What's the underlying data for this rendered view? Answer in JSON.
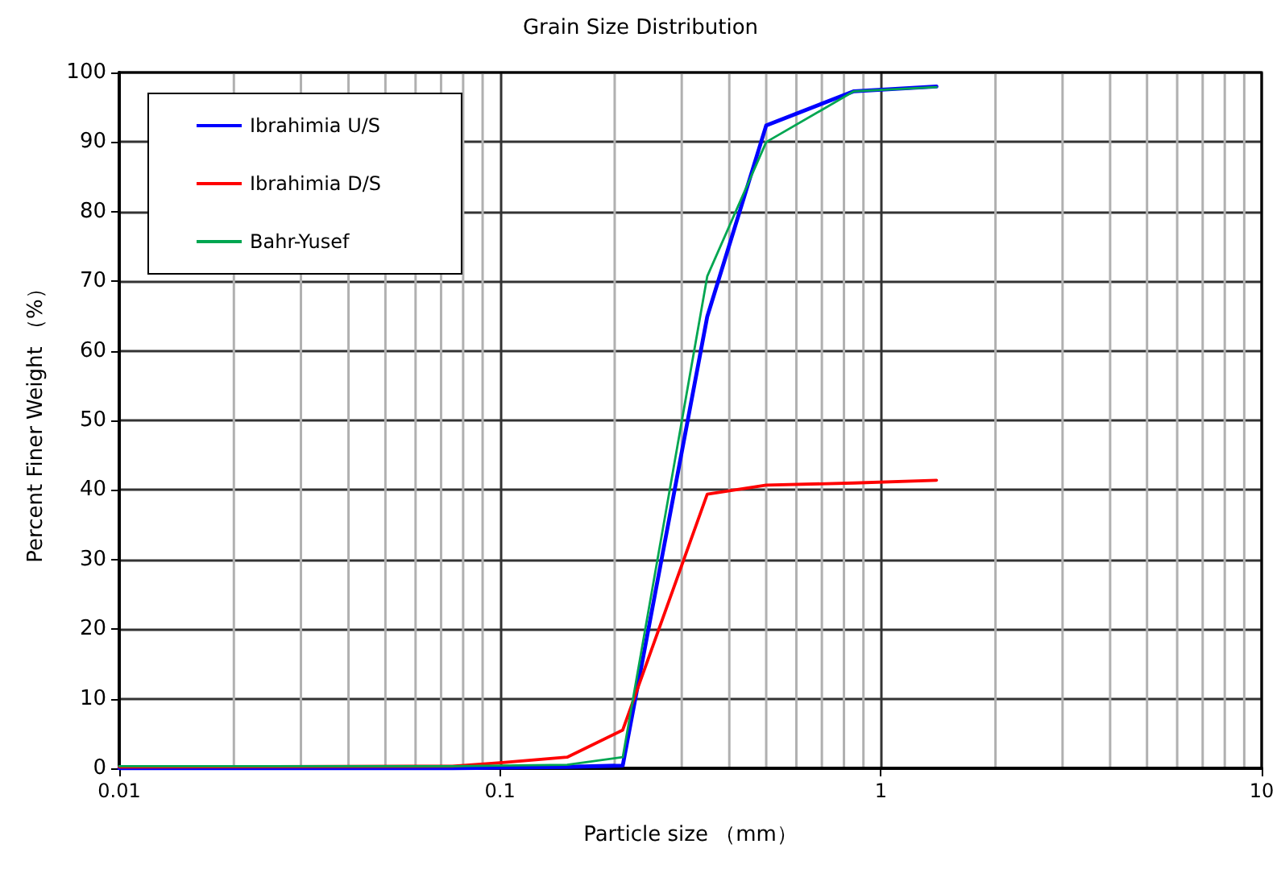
{
  "chart_data": {
    "type": "line",
    "title": "Grain Size Distribution",
    "xlabel": "Particle size （mm）",
    "ylabel": "Percent Finer Weight （%）",
    "log": "x",
    "xlim": [
      0.01,
      10
    ],
    "xticks": [
      0.01,
      0.1,
      1,
      10
    ],
    "ylim": [
      0,
      100
    ],
    "yticks": [
      0,
      10,
      20,
      30,
      40,
      50,
      60,
      70,
      80,
      90,
      100
    ],
    "grid": true,
    "legend": "top left",
    "marker": "none",
    "line_style": "solid",
    "series": [
      {
        "name": "Ibrahimia U/S",
        "color": "#0000ff",
        "x": [
          0.01,
          0.075,
          0.1,
          0.15,
          0.21,
          0.35,
          0.5,
          0.85,
          1.4
        ],
        "values": [
          0,
          0,
          0.1,
          0.2,
          0.4,
          64.9,
          92.4,
          97.3,
          98
        ]
      },
      {
        "name": "Ibrahimia D/S",
        "color": "#ff0000",
        "x": [
          0.01,
          0.075,
          0.1,
          0.15,
          0.21,
          0.35,
          0.5,
          0.85,
          1.4
        ],
        "values": [
          0.2,
          0.3,
          0.8,
          1.6,
          5.5,
          39.4,
          40.7,
          41,
          41.4
        ]
      },
      {
        "name": "Bahr-Yusef",
        "color": "#00a651",
        "x": [
          0.01,
          0.075,
          0.1,
          0.15,
          0.21,
          0.35,
          0.5,
          0.85,
          1.4
        ],
        "values": [
          0.3,
          0.3,
          0.4,
          0.5,
          1.6,
          70.7,
          90,
          97.3,
          97.9
        ]
      }
    ]
  }
}
